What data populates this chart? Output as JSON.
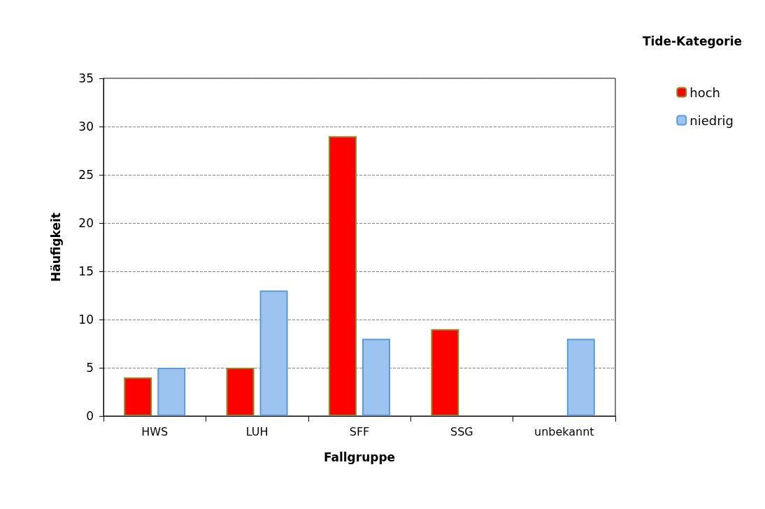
{
  "chart_data": {
    "type": "bar",
    "xlabel": "Fallgruppe",
    "ylabel": "Häufigkeit",
    "legend_title": "Tide-Kategorie",
    "categories": [
      "HWS",
      "LUH",
      "SFF",
      "SSG",
      "unbekannt"
    ],
    "series": [
      {
        "name": "hoch",
        "color": "#ff0000",
        "values": [
          4,
          5,
          29,
          9,
          null
        ]
      },
      {
        "name": "niedrig",
        "color": "#9dc3f0",
        "values": [
          5,
          13,
          8,
          null,
          8
        ]
      }
    ],
    "ylim": [
      0,
      35
    ],
    "yticks": [
      0,
      5,
      10,
      15,
      20,
      25,
      30,
      35
    ],
    "grid": "y",
    "legend": "right"
  }
}
